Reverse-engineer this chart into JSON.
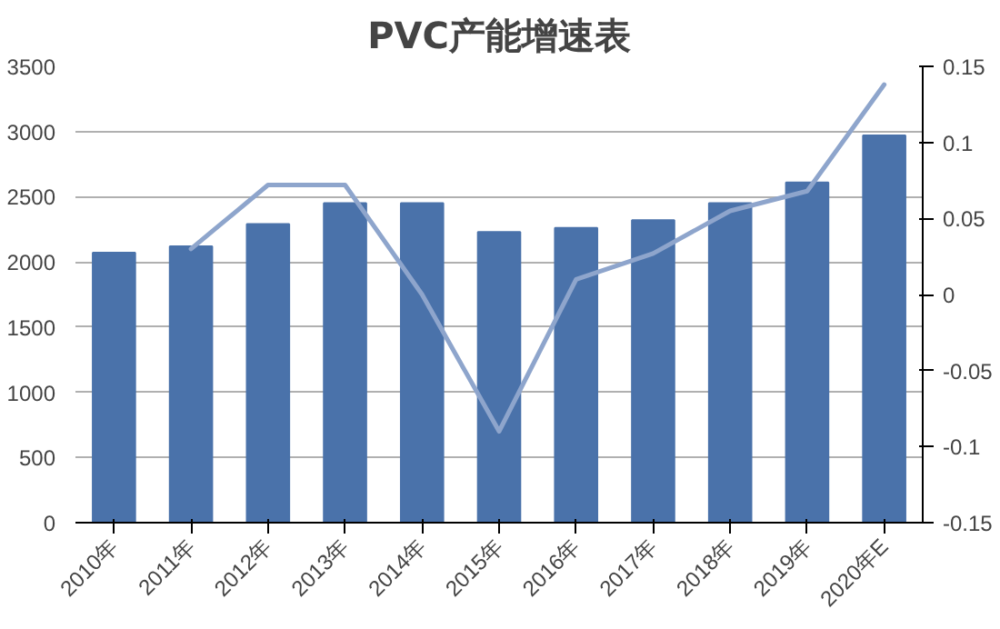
{
  "chart_data": {
    "type": "bar",
    "title": "PVC产能增速表",
    "categories": [
      "2010年",
      "2011年",
      "2012年",
      "2013年",
      "2014年",
      "2015年",
      "2016年",
      "2017年",
      "2018年",
      "2019年",
      "2020年E"
    ],
    "series": [
      {
        "color": "#4a72aa",
        "values": [
          2070,
          2120,
          2290,
          2450,
          2450,
          2230,
          2260,
          2320,
          2450,
          2610,
          2970
        ]
      },
      {
        "type": "line",
        "axis": "y2",
        "color": "#8ea5cc",
        "values": [
          null,
          0.03,
          0.072,
          0.072,
          0.0,
          -0.09,
          0.01,
          0.027,
          0.055,
          0.068,
          0.138
        ]
      }
    ],
    "ylim": [
      0,
      3500
    ],
    "yticks": [
      0,
      500,
      1000,
      1500,
      2000,
      2500,
      3000,
      3500
    ],
    "y2lim": [
      -0.15,
      0.15
    ],
    "y2ticks": [
      {
        "value": -0.15,
        "label": "-0.15"
      },
      {
        "value": -0.1,
        "label": "-0.1"
      },
      {
        "value": -0.05,
        "label": "-0.05"
      },
      {
        "value": 0,
        "label": "0"
      },
      {
        "value": 0.05,
        "label": "0.05"
      },
      {
        "value": 0.1,
        "label": "0.1"
      },
      {
        "value": 0.15,
        "label": "0.15"
      }
    ],
    "grid": "y",
    "marker": "none"
  }
}
